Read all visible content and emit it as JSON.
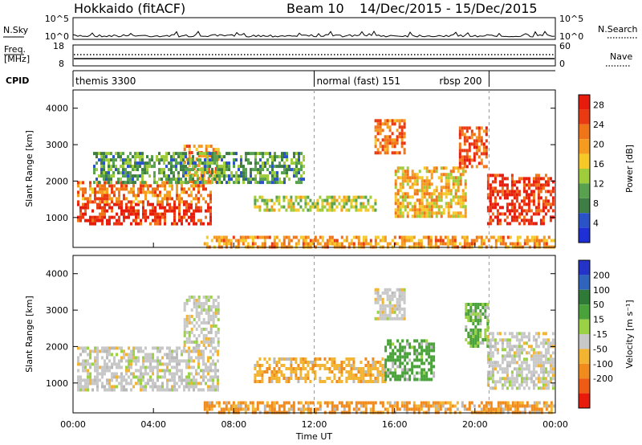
{
  "header": {
    "radar": "Hokkaido (fitACF)",
    "beam": "Beam 10",
    "dates": "14/Dec/2015 - 15/Dec/2015"
  },
  "panels": {
    "nsky_label": "N.Sky",
    "nsearch_label": "N.Search",
    "freq_label_1": "Freq.",
    "freq_label_2": "[MHz]",
    "nave_label": "Nave",
    "cpid_label": "CPID",
    "nsky_ticks": [
      "10^5",
      "10^0"
    ],
    "freq_ticks": [
      "18",
      "8"
    ],
    "nave_ticks": [
      "60",
      "0"
    ]
  },
  "cpid": [
    {
      "name": "themis 3300",
      "from": 0,
      "to": 12
    },
    {
      "name": "normal (fast) 151",
      "from": 12,
      "to": 20.7
    },
    {
      "name": "rbsp 200",
      "from": 20.7,
      "to": 24
    }
  ],
  "colors": {
    "power": [
      "#1f2fd6",
      "#2a53c8",
      "#3e7e45",
      "#58a24f",
      "#9fcc3a",
      "#f5c928",
      "#f59b1f",
      "#f07418",
      "#ea3a12",
      "#e61b0c"
    ],
    "velocity": [
      "#2434c9",
      "#2f64bd",
      "#2f7a36",
      "#4aa23a",
      "#9bd145",
      "#c8c8c8",
      "#f3b531",
      "#f18b1d",
      "#ee5b15",
      "#e81a0b"
    ],
    "ground": "#b9b9b9"
  },
  "chart_data": [
    {
      "type": "heatmap",
      "title": "Power",
      "ylabel": "Slant Range [km]",
      "xlabel": "",
      "x_ticks": [
        "00:00",
        "04:00",
        "08:00",
        "12:00",
        "16:00",
        "20:00",
        "00:00"
      ],
      "y_ticks": [
        "1000",
        "2000",
        "3000",
        "4000"
      ],
      "xlim_hours": [
        0,
        24
      ],
      "ylim_km": [
        180,
        4500
      ],
      "colorbar_label": "Power [dB]",
      "colorbar_ticks": [
        "4",
        "8",
        "12",
        "16",
        "20",
        "24",
        "28"
      ],
      "colorbar_range": [
        0,
        30
      ],
      "echo_regions": [
        {
          "t0": 0.2,
          "t1": 6.8,
          "r0": 800,
          "r1": 1400,
          "level": 27
        },
        {
          "t0": 0.2,
          "t1": 6.8,
          "r0": 1400,
          "r1": 2000,
          "level": 22
        },
        {
          "t0": 5.5,
          "t1": 7.2,
          "r0": 2000,
          "r1": 3000,
          "level": 20
        },
        {
          "t0": 1.0,
          "t1": 11.5,
          "r0": 2000,
          "r1": 2800,
          "level": 10
        },
        {
          "t0": 9.0,
          "t1": 15.0,
          "r0": 1200,
          "r1": 1600,
          "level": 14
        },
        {
          "t0": 15.0,
          "t1": 16.5,
          "r0": 2800,
          "r1": 3700,
          "level": 22
        },
        {
          "t0": 16.0,
          "t1": 19.5,
          "r0": 1000,
          "r1": 2400,
          "level": 18
        },
        {
          "t0": 19.2,
          "t1": 20.6,
          "r0": 2400,
          "r1": 3500,
          "level": 25
        },
        {
          "t0": 20.6,
          "t1": 23.9,
          "r0": 800,
          "r1": 2200,
          "level": 27
        },
        {
          "t0": 6.5,
          "t1": 23.9,
          "r0": 200,
          "r1": 500,
          "level": 20
        }
      ]
    },
    {
      "type": "heatmap",
      "title": "Velocity",
      "ylabel": "Slant Range [km]",
      "xlabel": "Time UT",
      "x_ticks": [
        "00:00",
        "04:00",
        "08:00",
        "12:00",
        "16:00",
        "20:00",
        "00:00"
      ],
      "y_ticks": [
        "1000",
        "2000",
        "3000",
        "4000"
      ],
      "xlim_hours": [
        0,
        24
      ],
      "ylim_km": [
        180,
        4500
      ],
      "colorbar_label": "Velocity [m s-1]",
      "colorbar_ticks": [
        "200",
        "100",
        "50",
        "15",
        "-15",
        "-50",
        "-100",
        "-200"
      ],
      "colorbar_range": [
        -250,
        250
      ],
      "echo_regions": [
        {
          "t0": 0.2,
          "t1": 7.2,
          "r0": 800,
          "r1": 2000,
          "level": 0
        },
        {
          "t0": 5.5,
          "t1": 7.2,
          "r0": 2000,
          "r1": 3400,
          "level": 0
        },
        {
          "t0": 9.0,
          "t1": 15.5,
          "r0": 1000,
          "r1": 1700,
          "level": -40
        },
        {
          "t0": 15.5,
          "t1": 18.0,
          "r0": 1100,
          "r1": 2200,
          "level": 50
        },
        {
          "t0": 15.0,
          "t1": 16.5,
          "r0": 2800,
          "r1": 3600,
          "level": 0
        },
        {
          "t0": 19.5,
          "t1": 20.6,
          "r0": 2000,
          "r1": 3200,
          "level": 40
        },
        {
          "t0": 20.6,
          "t1": 23.9,
          "r0": 900,
          "r1": 2400,
          "level": 0
        },
        {
          "t0": 6.5,
          "t1": 23.9,
          "r0": 200,
          "r1": 500,
          "level": -60
        }
      ]
    }
  ]
}
